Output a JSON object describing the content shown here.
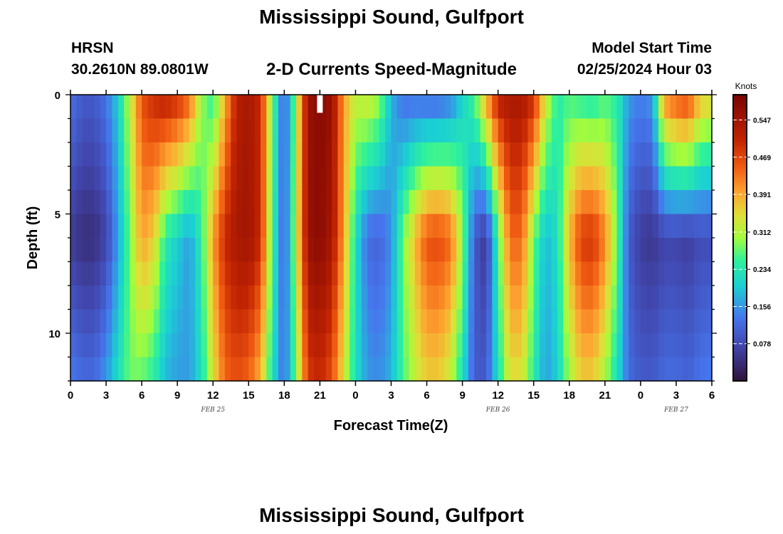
{
  "page": {
    "title": "Mississippi Sound, Gulfport",
    "footer_title": "Mississippi Sound, Gulfport",
    "station_id": "HRSN",
    "coordinates": "30.2610N  89.0801W",
    "subtitle": "2-D Currents Speed-Magnitude",
    "model_label": "Model Start Time",
    "model_time": "02/25/2024 Hour 03"
  },
  "chart_data": {
    "type": "heatmap",
    "title": "2-D Currents Speed-Magnitude",
    "xlabel": "Forecast Time(Z)",
    "ylabel": "Depth (ft)",
    "colorbar_label": "Knots",
    "x_tick_labels": [
      "0",
      "3",
      "6",
      "9",
      "12",
      "15",
      "18",
      "21",
      "0",
      "3",
      "6",
      "9",
      "12",
      "15",
      "18",
      "21",
      "0",
      "3",
      "6"
    ],
    "x_range_hours": [
      0,
      54
    ],
    "date_labels": [
      {
        "text": "FEB 25",
        "hour": 12
      },
      {
        "text": "FEB 26",
        "hour": 36
      },
      {
        "text": "FEB 27",
        "hour": 51
      }
    ],
    "y_tick_labels": [
      "0",
      "5",
      "10"
    ],
    "y_range": [
      0,
      12
    ],
    "colorbar_ticks": [
      "0.547",
      "0.469",
      "0.391",
      "0.312",
      "0.234",
      "0.156",
      "0.078"
    ],
    "color_range": [
      0,
      0.6
    ],
    "marker": {
      "hour": 21,
      "depth": 0.4
    },
    "profile_hours": [
      0,
      1,
      2,
      3,
      4,
      5,
      6,
      7,
      8,
      9,
      10,
      11,
      12,
      13,
      14,
      15,
      16,
      17,
      18,
      19,
      20,
      21,
      22,
      23,
      24,
      25,
      26,
      27,
      28,
      29,
      30,
      31,
      32,
      33,
      34,
      35,
      36,
      37,
      38,
      39,
      40,
      41,
      42,
      43,
      44,
      45,
      46,
      47,
      48,
      49,
      50,
      51,
      52,
      53,
      54
    ],
    "surface_speed": [
      0.13,
      0.1,
      0.1,
      0.13,
      0.2,
      0.32,
      0.46,
      0.5,
      0.52,
      0.5,
      0.45,
      0.3,
      0.24,
      0.38,
      0.52,
      0.54,
      0.5,
      0.28,
      0.1,
      0.3,
      0.56,
      0.58,
      0.56,
      0.4,
      0.32,
      0.34,
      0.3,
      0.18,
      0.12,
      0.12,
      0.11,
      0.11,
      0.13,
      0.2,
      0.26,
      0.4,
      0.52,
      0.54,
      0.54,
      0.5,
      0.34,
      0.24,
      0.26,
      0.24,
      0.23,
      0.26,
      0.24,
      0.16,
      0.14,
      0.16,
      0.42,
      0.46,
      0.48,
      0.38,
      0.36
    ],
    "mid_speed": [
      0.06,
      0.04,
      0.04,
      0.07,
      0.16,
      0.28,
      0.4,
      0.36,
      0.24,
      0.2,
      0.16,
      0.24,
      0.4,
      0.5,
      0.54,
      0.55,
      0.5,
      0.26,
      0.1,
      0.32,
      0.56,
      0.58,
      0.54,
      0.4,
      0.22,
      0.12,
      0.11,
      0.15,
      0.28,
      0.38,
      0.46,
      0.47,
      0.44,
      0.3,
      0.1,
      0.05,
      0.25,
      0.44,
      0.44,
      0.28,
      0.18,
      0.22,
      0.38,
      0.48,
      0.49,
      0.42,
      0.28,
      0.1,
      0.06,
      0.05,
      0.07,
      0.07,
      0.06,
      0.08,
      0.08
    ],
    "bottom_speed": [
      0.14,
      0.12,
      0.12,
      0.16,
      0.22,
      0.28,
      0.27,
      0.24,
      0.18,
      0.16,
      0.16,
      0.22,
      0.34,
      0.44,
      0.46,
      0.44,
      0.38,
      0.22,
      0.12,
      0.28,
      0.48,
      0.5,
      0.46,
      0.34,
      0.22,
      0.16,
      0.15,
      0.18,
      0.26,
      0.32,
      0.36,
      0.36,
      0.32,
      0.22,
      0.1,
      0.1,
      0.22,
      0.34,
      0.34,
      0.24,
      0.16,
      0.2,
      0.3,
      0.36,
      0.36,
      0.3,
      0.22,
      0.12,
      0.1,
      0.1,
      0.12,
      0.12,
      0.11,
      0.13,
      0.14
    ]
  }
}
